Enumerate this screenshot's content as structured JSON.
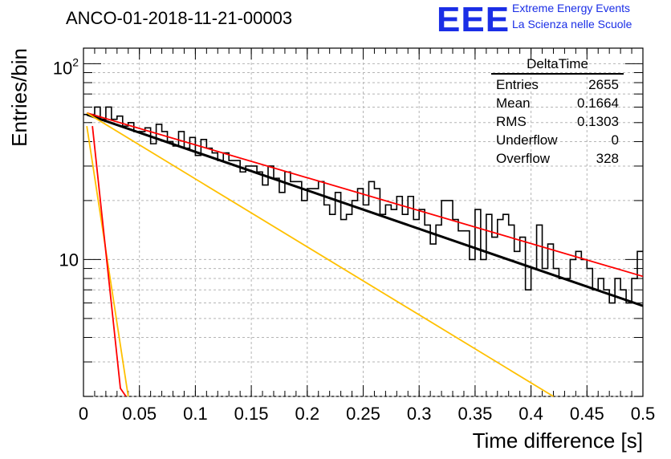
{
  "header": {
    "title": "ANCO-01-2018-11-21-00003",
    "logo_text": "EEE",
    "logo_line1": "Extreme Energy Events",
    "logo_line2": "La Scienza nelle Scuole"
  },
  "stats_box": {
    "title": "DeltaTime",
    "rows": [
      {
        "label": "Entries",
        "value": "2655"
      },
      {
        "label": "Mean",
        "value": "0.1664"
      },
      {
        "label": "RMS",
        "value": "0.1303"
      },
      {
        "label": "Underflow",
        "value": "0"
      },
      {
        "label": "Overflow",
        "value": "328"
      }
    ]
  },
  "colors": {
    "histogram": "#000000",
    "fit_black": "#000000",
    "fit_red": "#ff0000",
    "fit_orange": "#ffc000",
    "logo": "#1a2ee6"
  },
  "chart_data": {
    "type": "line",
    "title": "ANCO-01-2018-11-21-00003",
    "xlabel": "Time difference [s]",
    "ylabel": "Entries/bin",
    "x_range": [
      0,
      0.5
    ],
    "y_range": [
      2,
      120
    ],
    "y_scale": "log",
    "grid": true,
    "x_ticks": [
      "0",
      "0.05",
      "0.1",
      "0.15",
      "0.2",
      "0.25",
      "0.3",
      "0.35",
      "0.4",
      "0.45",
      "0.5"
    ],
    "y_tick_labels": [
      "10",
      "10^2"
    ],
    "bin_width": 0.005,
    "series": [
      {
        "style": "step",
        "color": "#000000",
        "values": [
          55,
          55,
          60,
          52,
          60,
          52,
          54,
          48,
          50,
          45,
          45,
          47,
          39,
          49,
          45,
          40,
          38,
          45,
          37,
          42,
          34,
          41,
          37,
          35,
          32,
          35,
          32,
          32,
          28,
          30,
          30,
          28,
          24,
          30,
          26,
          22,
          28,
          25,
          25,
          20,
          23,
          23,
          25,
          19,
          17,
          22,
          16,
          17,
          20,
          23,
          19,
          25,
          23,
          17,
          19,
          18,
          21,
          17,
          21,
          16,
          18,
          15,
          12,
          15,
          20,
          20,
          16,
          14,
          14,
          10,
          18,
          10,
          17,
          13,
          16,
          17,
          15,
          11,
          13,
          7,
          9,
          15,
          9,
          12,
          9,
          8,
          8,
          10,
          11,
          10,
          9,
          7,
          8,
          7,
          6,
          8,
          7,
          6,
          8,
          11
        ]
      },
      {
        "style": "line",
        "color": "#000000",
        "points": [
          [
            0.003,
            55
          ],
          [
            0.5,
            5.8
          ]
        ]
      },
      {
        "style": "line",
        "color": "#ff0000",
        "points": [
          [
            0.003,
            56
          ],
          [
            0.5,
            8.2
          ]
        ]
      },
      {
        "style": "line",
        "color": "#ffc000",
        "points": [
          [
            0.003,
            56
          ],
          [
            0.42,
            2
          ]
        ]
      },
      {
        "style": "line",
        "color": "#ffc000",
        "points": [
          [
            0.003,
            48
          ],
          [
            0.04,
            2
          ]
        ]
      },
      {
        "style": "line",
        "color": "#ff0000",
        "points": [
          [
            0.008,
            48
          ],
          [
            0.033,
            2.2
          ],
          [
            0.038,
            2
          ]
        ]
      }
    ]
  }
}
